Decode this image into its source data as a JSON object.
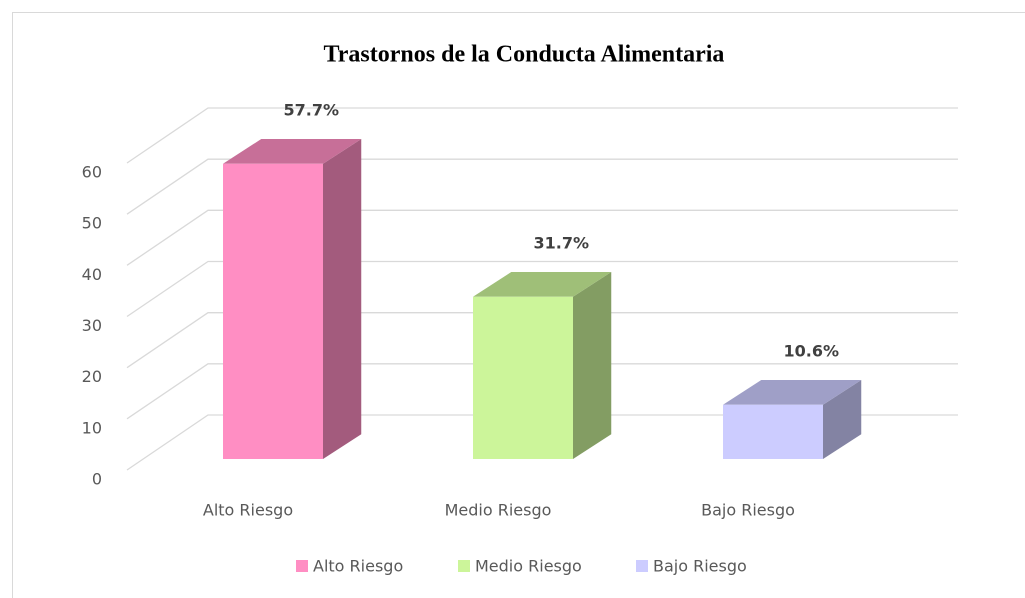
{
  "chart_data": {
    "type": "bar3d",
    "title": "Trastornos de la Conducta Alimentaria",
    "categories": [
      "Alto Riesgo",
      "Medio Riesgo",
      "Bajo Riesgo"
    ],
    "values": [
      57.7,
      31.7,
      10.6
    ],
    "value_labels": [
      "57.7%",
      "31.7%",
      "10.6%"
    ],
    "colors": [
      "#ff8ec3",
      "#ccf59a",
      "#ccccff"
    ],
    "ylim": [
      0,
      60
    ],
    "yticks": [
      0,
      10,
      20,
      30,
      40,
      50,
      60
    ],
    "grid": true,
    "legend": "bottom"
  }
}
